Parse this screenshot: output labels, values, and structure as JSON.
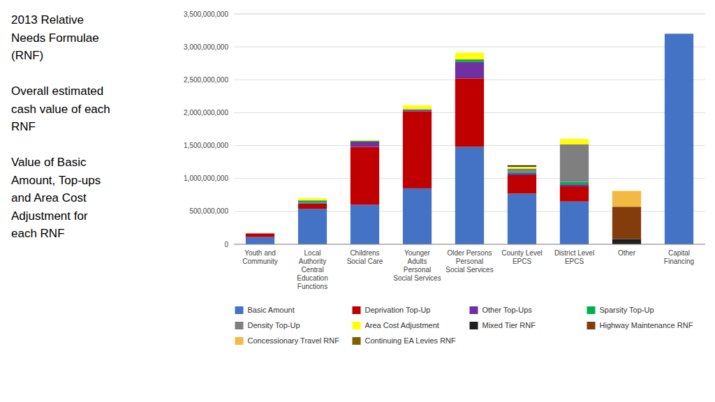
{
  "chart_data": {
    "type": "bar",
    "stacked": true,
    "title": "2013 Relative\nNeeds Formulae\n(RNF)\n\nOverall estimated\ncash value of each\nRNF\n\nValue of Basic\nAmount, Top-ups\nand Area Cost\nAdjustment for\neach RNF",
    "categories": [
      "Youth and\nCommunity",
      "Local\nAuthority\nCentral\nEducation\nFunctions",
      "Childrens\nSocial Care",
      "Younger\nAdults\nPersonal\nSocial Services",
      "Older Persons\nPersonal\nSocial Services",
      "County Level\nEPCS",
      "District Level\nEPCS",
      "Other",
      "Capital\nFinancing"
    ],
    "series": [
      {
        "name": "Basic Amount",
        "color": "#4472C4",
        "values": [
          110000000,
          540000000,
          600000000,
          850000000,
          1480000000,
          770000000,
          650000000,
          0,
          3200000000
        ]
      },
      {
        "name": "Deprivation Top-Up",
        "color": "#C00000",
        "values": [
          55000000,
          80000000,
          880000000,
          1170000000,
          1040000000,
          280000000,
          230000000,
          0,
          0
        ]
      },
      {
        "name": "Other Top-Ups",
        "color": "#7030A0",
        "values": [
          0,
          10000000,
          80000000,
          20000000,
          250000000,
          30000000,
          30000000,
          0,
          0
        ]
      },
      {
        "name": "Sparsity Top-Up",
        "color": "#00B050",
        "values": [
          0,
          30000000,
          10000000,
          10000000,
          30000000,
          20000000,
          40000000,
          0,
          0
        ]
      },
      {
        "name": "Density Top-Up",
        "color": "#7F7F7F",
        "values": [
          0,
          10000000,
          5000000,
          5000000,
          10000000,
          50000000,
          570000000,
          0,
          0
        ]
      },
      {
        "name": "Area Cost Adjustment",
        "color": "#FFFF00",
        "values": [
          0,
          30000000,
          10000000,
          55000000,
          100000000,
          30000000,
          80000000,
          0,
          0
        ]
      },
      {
        "name": "Mixed Tier RNF",
        "color": "#1F1F1F",
        "values": [
          0,
          0,
          0,
          0,
          0,
          20000000,
          0,
          80000000,
          0
        ]
      },
      {
        "name": "Highway Maintenance RNF",
        "color": "#843C0C",
        "values": [
          0,
          0,
          0,
          0,
          0,
          0,
          0,
          490000000,
          0
        ]
      },
      {
        "name": "Concessionary Travel RNF",
        "color": "#F4B942",
        "values": [
          0,
          0,
          0,
          0,
          0,
          0,
          0,
          240000000,
          0
        ]
      },
      {
        "name": "Continuing EA Levies RNF",
        "color": "#7F6000",
        "values": [
          0,
          0,
          0,
          0,
          0,
          0,
          0,
          0,
          0
        ]
      }
    ],
    "ylim": [
      0,
      3500000000
    ],
    "yticks": [
      0,
      {
        "value": 500000000,
        "label": "500,000,000"
      },
      {
        "value": 1000000000,
        "label": "1,000,000,000"
      },
      {
        "value": 1500000000,
        "label": "1,500,000,000"
      },
      {
        "value": 2000000000,
        "label": "2,000,000,000"
      },
      {
        "value": 2500000000,
        "label": "2,500,000,000"
      },
      {
        "value": 3000000000,
        "label": "3,000,000,000"
      },
      {
        "value": 3500000000,
        "label": "3,500,000,000"
      }
    ],
    "grid": true,
    "legend": "bottom"
  }
}
